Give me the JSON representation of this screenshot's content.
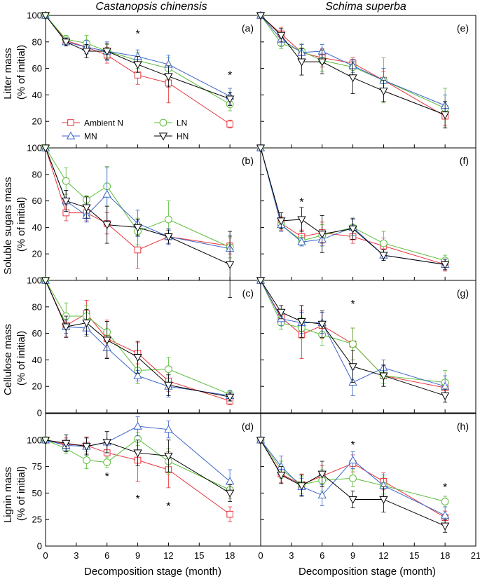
{
  "species_titles": [
    "Castanopsis chinensis",
    "Schima superba"
  ],
  "x_axis_label": "Decomposition stage (month)",
  "x_ticks": [
    0,
    3,
    6,
    9,
    12,
    15,
    18,
    21
  ],
  "x_tick_labels": [
    "0",
    "3",
    "6",
    "9",
    "12",
    "15",
    "18",
    "21"
  ],
  "rows": [
    {
      "ylabel": [
        "Litter mass",
        "(% of initial)"
      ],
      "ylim": [
        0,
        100
      ],
      "yticks": [
        0,
        20,
        40,
        60,
        80,
        100
      ],
      "ytick_labels": [
        "",
        "20",
        "40",
        "60",
        "80",
        "100"
      ]
    },
    {
      "ylabel": [
        "Soluble sugars mass",
        "(% of initial)"
      ],
      "ylim": [
        0,
        100
      ],
      "yticks": [
        0,
        20,
        40,
        60,
        80,
        100
      ],
      "ytick_labels": [
        "",
        "20",
        "40",
        "60",
        "80",
        "100"
      ]
    },
    {
      "ylabel": [
        "Cellulose mass",
        "(% of initial)"
      ],
      "ylim": [
        0,
        100
      ],
      "yticks": [
        0,
        20,
        40,
        60,
        80,
        100
      ],
      "ytick_labels": [
        "0",
        "20",
        "40",
        "60",
        "80",
        "100"
      ]
    },
    {
      "ylabel": [
        "Lignin mass",
        "(% of initial)"
      ],
      "ylim": [
        0,
        125
      ],
      "yticks": [
        0,
        25,
        50,
        75,
        100
      ],
      "ytick_labels": [
        "0",
        "25",
        "50",
        "75",
        "100"
      ]
    }
  ],
  "legend": [
    {
      "key": "ambient",
      "label": "Ambient N",
      "color": "#e8333a",
      "marker": "square"
    },
    {
      "key": "ln",
      "label": "LN",
      "color": "#5cbd3c",
      "marker": "circle"
    },
    {
      "key": "mn",
      "label": "MN",
      "color": "#3a64c8",
      "marker": "triangle-up"
    },
    {
      "key": "hn",
      "label": "HN",
      "color": "#000000",
      "marker": "triangle-down"
    }
  ],
  "chart_data": [
    {
      "panel": "(a)",
      "type": "line",
      "x": [
        0,
        2,
        4,
        6,
        9,
        12,
        18
      ],
      "ylim": [
        0,
        100
      ],
      "series": [
        {
          "name": "Ambient N",
          "values": [
            100,
            81,
            76,
            70,
            55,
            49,
            18
          ],
          "err": [
            0,
            3,
            5,
            6,
            7,
            15,
            3
          ]
        },
        {
          "name": "LN",
          "values": [
            100,
            82,
            79,
            73,
            66,
            60,
            33
          ],
          "err": [
            0,
            3,
            6,
            5,
            6,
            8,
            5
          ]
        },
        {
          "name": "MN",
          "values": [
            100,
            80,
            76,
            73,
            69,
            63,
            39
          ],
          "err": [
            0,
            3,
            5,
            7,
            5,
            7,
            6
          ]
        },
        {
          "name": "HN",
          "values": [
            100,
            80,
            73,
            73,
            63,
            54,
            37
          ],
          "err": [
            0,
            3,
            5,
            6,
            6,
            8,
            5
          ]
        }
      ],
      "stars": [
        {
          "x": 9,
          "y": 88
        },
        {
          "x": 18,
          "y": 57
        }
      ]
    },
    {
      "panel": "(e)",
      "type": "line",
      "x": [
        0,
        2,
        4,
        6,
        9,
        12,
        18
      ],
      "ylim": [
        0,
        100
      ],
      "series": [
        {
          "name": "Ambient N",
          "values": [
            100,
            86,
            72,
            68,
            64,
            51,
            24
          ],
          "err": [
            0,
            5,
            6,
            7,
            4,
            7,
            7
          ]
        },
        {
          "name": "LN",
          "values": [
            100,
            79,
            73,
            66,
            61,
            51,
            30
          ],
          "err": [
            0,
            4,
            6,
            8,
            6,
            17,
            15
          ]
        },
        {
          "name": "MN",
          "values": [
            100,
            82,
            72,
            73,
            62,
            51,
            32
          ],
          "err": [
            0,
            5,
            6,
            5,
            5,
            9,
            8
          ]
        },
        {
          "name": "HN",
          "values": [
            100,
            85,
            65,
            65,
            53,
            43,
            25
          ],
          "err": [
            0,
            5,
            10,
            9,
            12,
            8,
            10
          ]
        }
      ],
      "stars": []
    },
    {
      "panel": "(b)",
      "type": "line",
      "x": [
        0,
        2,
        4,
        6,
        9,
        12,
        18
      ],
      "ylim": [
        0,
        100
      ],
      "series": [
        {
          "name": "Ambient N",
          "values": [
            100,
            51,
            51,
            43,
            23,
            33,
            26
          ],
          "err": [
            0,
            6,
            6,
            8,
            14,
            6,
            6
          ]
        },
        {
          "name": "LN",
          "values": [
            100,
            75,
            61,
            71,
            37,
            46,
            25
          ],
          "err": [
            0,
            10,
            3,
            15,
            10,
            14,
            8
          ]
        },
        {
          "name": "MN",
          "values": [
            100,
            60,
            49,
            65,
            43,
            33,
            24
          ],
          "err": [
            0,
            8,
            5,
            20,
            10,
            6,
            10
          ]
        },
        {
          "name": "HN",
          "values": [
            100,
            60,
            55,
            42,
            40,
            33,
            12
          ],
          "err": [
            0,
            8,
            8,
            14,
            6,
            5,
            25
          ]
        }
      ],
      "stars": []
    },
    {
      "panel": "(f)",
      "type": "line",
      "x": [
        0,
        2,
        4,
        6,
        9,
        12,
        18
      ],
      "ylim": [
        0,
        100
      ],
      "series": [
        {
          "name": "Ambient N",
          "values": [
            100,
            43,
            33,
            36,
            33,
            26,
            12
          ],
          "err": [
            0,
            5,
            5,
            8,
            5,
            6,
            5
          ]
        },
        {
          "name": "LN",
          "values": [
            100,
            42,
            30,
            34,
            40,
            28,
            15
          ],
          "err": [
            0,
            5,
            4,
            8,
            6,
            9,
            4
          ]
        },
        {
          "name": "MN",
          "values": [
            100,
            42,
            29,
            31,
            40,
            19,
            12
          ],
          "err": [
            0,
            5,
            3,
            5,
            6,
            4,
            4
          ]
        },
        {
          "name": "HN",
          "values": [
            100,
            45,
            46,
            35,
            39,
            19,
            12
          ],
          "err": [
            0,
            6,
            9,
            14,
            8,
            4,
            4
          ]
        }
      ],
      "stars": [
        {
          "x": 4,
          "y": 61
        }
      ]
    },
    {
      "panel": "(c)",
      "type": "line",
      "x": [
        0,
        2,
        4,
        6,
        9,
        12,
        18
      ],
      "ylim": [
        0,
        100
      ],
      "series": [
        {
          "name": "Ambient N",
          "values": [
            100,
            66,
            75,
            56,
            45,
            24,
            9
          ],
          "err": [
            0,
            8,
            10,
            14,
            8,
            8,
            3
          ]
        },
        {
          "name": "LN",
          "values": [
            100,
            73,
            73,
            61,
            32,
            33,
            14
          ],
          "err": [
            0,
            10,
            8,
            8,
            10,
            9,
            3
          ]
        },
        {
          "name": "MN",
          "values": [
            100,
            65,
            64,
            49,
            28,
            20,
            13
          ],
          "err": [
            0,
            5,
            5,
            8,
            4,
            8,
            4
          ]
        },
        {
          "name": "HN",
          "values": [
            100,
            65,
            68,
            55,
            42,
            21,
            12
          ],
          "err": [
            0,
            8,
            10,
            14,
            12,
            8,
            3
          ]
        }
      ],
      "stars": []
    },
    {
      "panel": "(g)",
      "type": "line",
      "x": [
        0,
        2,
        4,
        6,
        9,
        12,
        18
      ],
      "ylim": [
        0,
        100
      ],
      "series": [
        {
          "name": "Ambient N",
          "values": [
            100,
            72,
            59,
            66,
            52,
            28,
            19
          ],
          "err": [
            0,
            5,
            18,
            10,
            12,
            8,
            5
          ]
        },
        {
          "name": "LN",
          "values": [
            100,
            68,
            64,
            59,
            52,
            28,
            23
          ],
          "err": [
            0,
            5,
            8,
            8,
            12,
            6,
            9
          ]
        },
        {
          "name": "MN",
          "values": [
            100,
            71,
            68,
            68,
            23,
            34,
            20
          ],
          "err": [
            0,
            5,
            8,
            8,
            10,
            6,
            8
          ]
        },
        {
          "name": "HN",
          "values": [
            100,
            76,
            69,
            67,
            35,
            28,
            13
          ],
          "err": [
            0,
            5,
            12,
            10,
            12,
            8,
            5
          ]
        }
      ],
      "stars": [
        {
          "x": 9,
          "y": 84
        }
      ]
    },
    {
      "panel": "(d)",
      "type": "line",
      "x": [
        0,
        2,
        4,
        6,
        9,
        12,
        18
      ],
      "ylim": [
        0,
        125
      ],
      "series": [
        {
          "name": "Ambient N",
          "values": [
            100,
            96,
            95,
            88,
            81,
            72,
            30
          ],
          "err": [
            0,
            6,
            8,
            10,
            20,
            17,
            7
          ]
        },
        {
          "name": "LN",
          "values": [
            100,
            92,
            81,
            79,
            101,
            80,
            53
          ],
          "err": [
            0,
            5,
            8,
            5,
            6,
            12,
            8
          ]
        },
        {
          "name": "MN",
          "values": [
            100,
            95,
            94,
            98,
            113,
            110,
            61
          ],
          "err": [
            0,
            5,
            8,
            10,
            9,
            8,
            11
          ]
        },
        {
          "name": "HN",
          "values": [
            100,
            97,
            94,
            98,
            88,
            85,
            50
          ],
          "err": [
            0,
            8,
            8,
            10,
            12,
            15,
            8
          ]
        }
      ],
      "stars": [
        {
          "x": 6,
          "y": 68
        },
        {
          "x": 9,
          "y": 47
        },
        {
          "x": 12,
          "y": 40
        }
      ]
    },
    {
      "panel": "(h)",
      "type": "line",
      "x": [
        0,
        2,
        4,
        6,
        9,
        12,
        18
      ],
      "ylim": [
        0,
        125
      ],
      "series": [
        {
          "name": "Ambient N",
          "values": [
            100,
            68,
            58,
            66,
            78,
            61,
            27
          ],
          "err": [
            0,
            8,
            10,
            10,
            8,
            8,
            6
          ]
        },
        {
          "name": "LN",
          "values": [
            100,
            72,
            58,
            62,
            64,
            57,
            42
          ],
          "err": [
            0,
            8,
            8,
            10,
            8,
            8,
            5
          ]
        },
        {
          "name": "MN",
          "values": [
            100,
            75,
            56,
            48,
            81,
            57,
            29
          ],
          "err": [
            0,
            10,
            8,
            10,
            8,
            10,
            8
          ]
        },
        {
          "name": "HN",
          "values": [
            100,
            67,
            57,
            68,
            44,
            44,
            19
          ],
          "err": [
            0,
            8,
            10,
            12,
            8,
            12,
            6
          ]
        }
      ],
      "stars": [
        {
          "x": 9,
          "y": 98
        },
        {
          "x": 18,
          "y": 58
        }
      ]
    }
  ]
}
